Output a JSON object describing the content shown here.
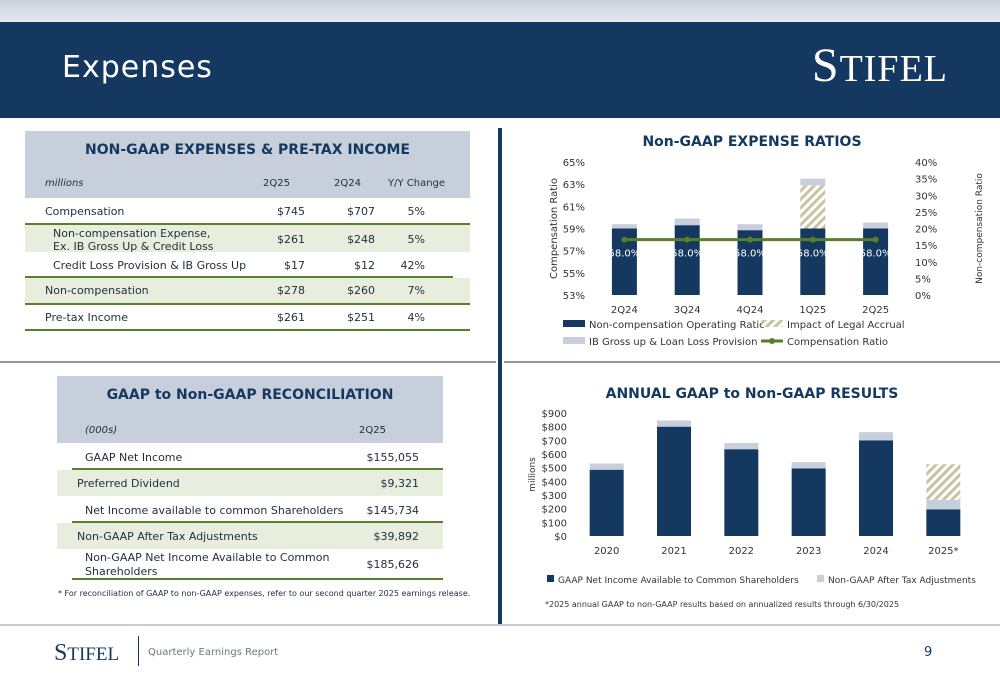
{
  "header": {
    "title": "Expenses",
    "logo_big": "S",
    "logo_rest": "TIFEL"
  },
  "expenses_table": {
    "title": "NON-GAAP EXPENSES & PRE-TAX INCOME",
    "col_label": "millions",
    "columns": [
      "2Q25",
      "2Q24",
      "Y/Y Change"
    ],
    "rows": [
      {
        "label": "Compensation",
        "v1": "$745",
        "v2": "$707",
        "chg": "5%"
      },
      {
        "label": "Non-compensation Expense,",
        "label2": "Ex. IB Gross Up & Credit Loss",
        "v1": "$261",
        "v2": "$248",
        "chg": "5%"
      },
      {
        "label": "Credit Loss Provision & IB Gross Up",
        "v1": "$17",
        "v2": "$12",
        "chg": "42%"
      },
      {
        "label": "Non-compensation",
        "v1": "$278",
        "v2": "$260",
        "chg": "7%"
      },
      {
        "label": "Pre-tax Income",
        "v1": "$261",
        "v2": "$251",
        "chg": "4%"
      }
    ]
  },
  "recon_table": {
    "title": "GAAP to Non-GAAP RECONCILIATION",
    "col_label": "(000s)",
    "column": "2Q25",
    "rows": [
      {
        "label": "GAAP Net Income",
        "value": "$155,055"
      },
      {
        "label": "Preferred Dividend",
        "value": "$9,321"
      },
      {
        "label": "Net Income available to common Shareholders",
        "value": "$145,734"
      },
      {
        "label": "Non-GAAP After Tax Adjustments",
        "value": "$39,892"
      },
      {
        "label": "Non-GAAP Net Income Available to Common",
        "label2": "Shareholders",
        "value": "$185,626"
      }
    ],
    "footnote": "* For reconciliation of GAAP to non-GAAP expenses, refer to our second quarter 2025 earnings release."
  },
  "chart_data": [
    {
      "type": "bar",
      "title": "Non-GAAP EXPENSE RATIOS",
      "categories": [
        "2Q24",
        "3Q24",
        "4Q24",
        "1Q25",
        "2Q25"
      ],
      "ylabel_left": "Compensation Ratio",
      "ylabel_right": "Non-compensation Ratio",
      "left_ticks": [
        "53%",
        "55%",
        "57%",
        "59%",
        "61%",
        "63%",
        "65%"
      ],
      "right_ticks": [
        "0%",
        "5%",
        "10%",
        "15%",
        "20%",
        "25%",
        "30%",
        "35%",
        "40%"
      ],
      "ylim_left": [
        53,
        65
      ],
      "ylim_right": [
        0,
        40
      ],
      "series": [
        {
          "name": "Non-compensation Operating Ratio",
          "axis": "right",
          "values": [
            20.0,
            21.0,
            19.5,
            20.0,
            20.0
          ],
          "color": "#14385f"
        },
        {
          "name": "Impact of Legal Accrual",
          "axis": "right",
          "values": [
            0,
            0,
            0,
            13.0,
            0
          ],
          "color": "#c9c3a0",
          "pattern": "hatch"
        },
        {
          "name": "IB Gross up & Loan Loss Provision",
          "axis": "right",
          "values": [
            1.3,
            2.0,
            1.8,
            2.0,
            1.8
          ],
          "color": "#c6cfdb"
        },
        {
          "name": "Compensation Ratio",
          "axis": "left",
          "type": "line",
          "values": [
            58.0,
            58.0,
            58.0,
            58.0,
            58.0
          ],
          "color": "#5a7f2a"
        }
      ],
      "data_labels": [
        "58.0%",
        "58.0%",
        "58.0%",
        "58.0%",
        "58.0%"
      ],
      "legend": "bottom"
    },
    {
      "type": "bar",
      "title": "ANNUAL GAAP to Non-GAAP RESULTS",
      "categories": [
        "2020",
        "2021",
        "2022",
        "2023",
        "2024",
        "2025*"
      ],
      "ylabel": "millions",
      "ticks": [
        "$0",
        "$100",
        "$200",
        "$300",
        "$400",
        "$500",
        "$600",
        "$700",
        "$800",
        "$900"
      ],
      "ylim": [
        0,
        900
      ],
      "series": [
        {
          "name": "GAAP Net Income Available to Common Shareholders",
          "values": [
            485,
            800,
            635,
            495,
            700,
            195
          ],
          "color": "#14385f"
        },
        {
          "name": "Non-GAAP After Tax Adjustments",
          "values": [
            45,
            45,
            45,
            45,
            60,
            70
          ],
          "color": "#c6cfdb"
        },
        {
          "name": "",
          "values": [
            0,
            0,
            0,
            0,
            0,
            260
          ],
          "color": "#c9c3a0",
          "pattern": "hatch"
        }
      ],
      "legend": "bottom",
      "footnote": "*2025 annual GAAP to non-GAAP results based on annualized results through 6/30/2025"
    }
  ],
  "footer": {
    "logo_big": "S",
    "logo_rest": "TIFEL",
    "subtitle": "Quarterly Earnings Report",
    "page": "9"
  }
}
